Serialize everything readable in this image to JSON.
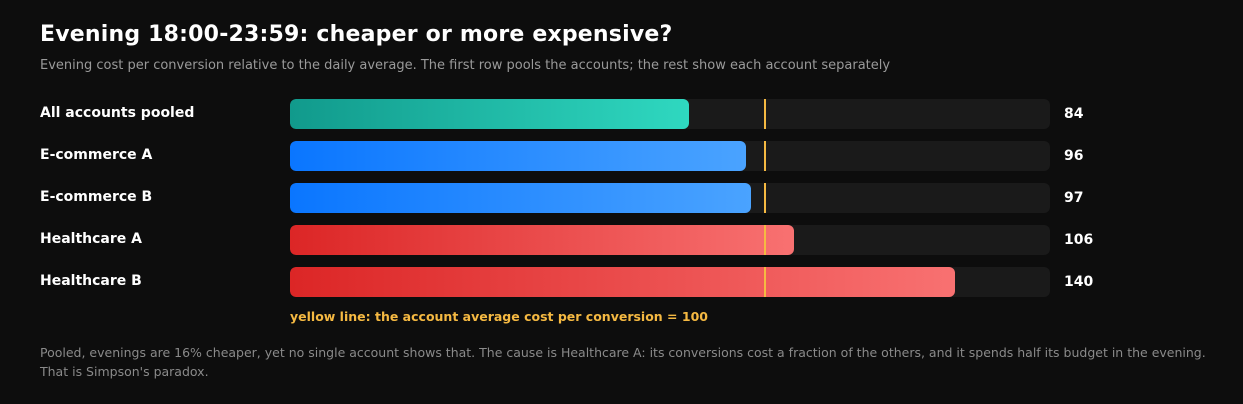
{
  "title": "Evening 18:00-23:59: cheaper or more expensive?",
  "subtitle": "Evening cost per conversion relative to the daily average. The first row pools the accounts; the rest show each account separately",
  "reference_note": "yellow line: the account average cost per conversion = 100",
  "footnote": "Pooled, evenings are 16% cheaper, yet no single account shows that. The cause is Healthcare A: its conversions cost a fraction of the others, and it spends half its budget in the evening. That is Simpson's paradox.",
  "colors": {
    "background": "#0d0d0d",
    "track": "#1a1a1a",
    "reference_line": "#f5b942",
    "pooled": "#2fd8c0",
    "cheaper": "#1e88ff",
    "more_expensive": "#ef4444"
  },
  "chart_data": {
    "type": "bar",
    "orientation": "horizontal",
    "categories": [
      "All accounts pooled",
      "E-commerce A",
      "E-commerce B",
      "Healthcare A",
      "Healthcare B"
    ],
    "values": [
      84,
      96,
      97,
      106,
      140
    ],
    "value_labels": [
      "84",
      "96",
      "97",
      "106",
      "140"
    ],
    "bar_styles": [
      "teal",
      "blue",
      "blue",
      "red",
      "red"
    ],
    "xlim": [
      0,
      160
    ],
    "reference_value": 100,
    "grid": false,
    "legend": "none"
  }
}
